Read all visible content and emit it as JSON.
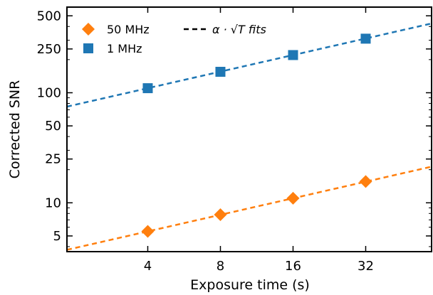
{
  "chart_data": {
    "type": "scatter",
    "xlabel": "Exposure time (s)",
    "ylabel": "Corrected SNR",
    "xscale": "log2",
    "yscale": "log",
    "xlim": [
      1.85,
      60
    ],
    "ylim": [
      3.6,
      600
    ],
    "xticks": [
      4,
      8,
      16,
      32
    ],
    "xtick_labels": [
      "4",
      "8",
      "16",
      "32"
    ],
    "yticks": [
      5,
      10,
      25,
      50,
      100,
      250,
      500
    ],
    "ytick_labels": [
      "5",
      "10",
      "25",
      "50",
      "100",
      "250",
      "500"
    ],
    "grid": false,
    "legend_position": "top-left",
    "series": [
      {
        "name": "50 MHz",
        "marker": "diamond",
        "color": "#ff7f0e",
        "x": [
          4,
          8,
          16,
          32
        ],
        "y": [
          5.5,
          7.8,
          11.0,
          15.6
        ]
      },
      {
        "name": "1 MHz",
        "marker": "square",
        "color": "#1f77b4",
        "x": [
          4,
          8,
          16,
          32
        ],
        "y": [
          110,
          155,
          220,
          310
        ]
      }
    ],
    "fits": [
      {
        "series": "50 MHz",
        "alpha": 2.75,
        "color": "#ff7f0e",
        "style": "dashed"
      },
      {
        "series": "1 MHz",
        "alpha": 55.0,
        "color": "#1f77b4",
        "style": "dashed"
      }
    ],
    "fit_legend_label": "α · √T fits"
  }
}
